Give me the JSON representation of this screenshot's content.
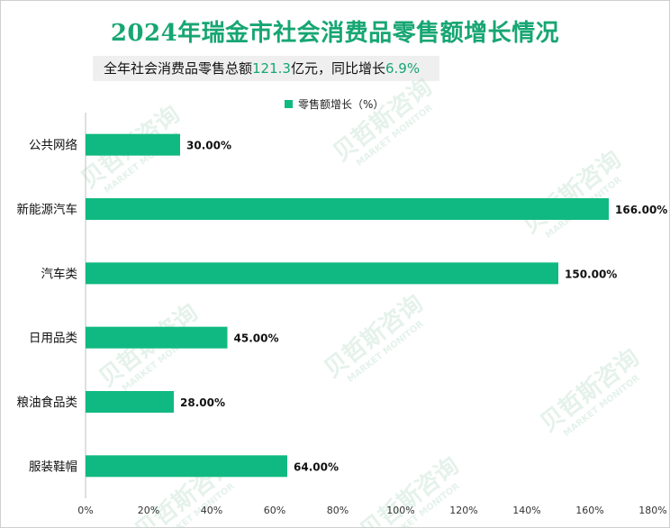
{
  "title": "2024年瑞金市社会消费品零售额增长情况",
  "subtitle": {
    "prefix": "全年社会消费品零售总额",
    "total": "121.3",
    "middle": "亿元，同比增长",
    "growth": "6.9%"
  },
  "colors": {
    "bar": "#10b981",
    "accent": "#17a673"
  },
  "watermark": {
    "cn": "贝哲斯咨询",
    "en": "MARKET MONITOR"
  },
  "chart_data": {
    "type": "bar",
    "orientation": "horizontal",
    "title": "2024年瑞金市社会消费品零售额增长情况",
    "categories": [
      "公共网络",
      "新能源汽车",
      "汽车类",
      "日用品类",
      "粮油食品类",
      "服装鞋帽"
    ],
    "series": [
      {
        "name": "零售额增长（%）",
        "values": [
          30,
          166,
          150,
          45,
          28,
          64
        ]
      }
    ],
    "data_labels": [
      "30.00%",
      "166.00%",
      "150.00%",
      "45.00%",
      "28.00%",
      "64.00%"
    ],
    "x_ticks": [
      "0%",
      "20%",
      "40%",
      "60%",
      "80%",
      "100%",
      "120%",
      "140%",
      "160%",
      "180%"
    ],
    "xlim": [
      0,
      180
    ],
    "grid": false,
    "legend_position": "top"
  }
}
